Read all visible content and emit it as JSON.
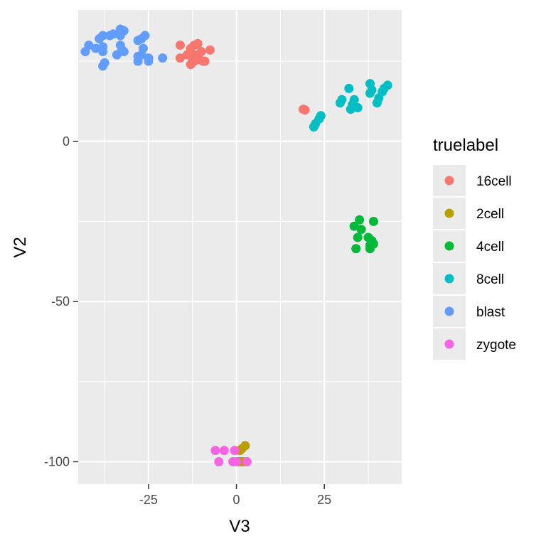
{
  "chart_data": {
    "type": "scatter",
    "xlabel": "V3",
    "ylabel": "V2",
    "xlim": [
      -45,
      47
    ],
    "ylim": [
      -107,
      41
    ],
    "x_ticks": [
      -25,
      0,
      25
    ],
    "x_tick_labels": [
      "-25",
      "0",
      "25"
    ],
    "y_ticks": [
      -100,
      -50,
      0
    ],
    "y_tick_labels": [
      "-100",
      "-50",
      "0"
    ],
    "grid": true,
    "legend": {
      "title": "truelabel",
      "placement": "right"
    },
    "series": [
      {
        "name": "16cell",
        "color": "#F8766D",
        "points": [
          [
            -16,
            30
          ],
          [
            -16,
            26
          ],
          [
            -13,
            29
          ],
          [
            -12,
            30
          ],
          [
            -11,
            30.5
          ],
          [
            -13,
            28
          ],
          [
            -10,
            28
          ],
          [
            -14,
            27
          ],
          [
            -11,
            27
          ],
          [
            -12.5,
            26
          ],
          [
            -10.5,
            25.5
          ],
          [
            -9.5,
            25
          ],
          [
            -9,
            25
          ],
          [
            -13,
            24
          ],
          [
            -12,
            25
          ],
          [
            -7.5,
            28.5
          ],
          [
            19,
            10
          ],
          [
            19.5,
            9.8
          ]
        ]
      },
      {
        "name": "2cell",
        "color": "#B79F00",
        "points": [
          [
            2.5,
            -95
          ],
          [
            1.5,
            -96
          ],
          [
            1,
            -96.5
          ],
          [
            0.5,
            -100
          ],
          [
            1,
            -100
          ],
          [
            1.5,
            -100
          ],
          [
            2,
            -100
          ]
        ]
      },
      {
        "name": "4cell",
        "color": "#00BA38",
        "points": [
          [
            35,
            -24.5
          ],
          [
            39,
            -25
          ],
          [
            33.5,
            -26.5
          ],
          [
            35.5,
            -27.5
          ],
          [
            34.5,
            -30
          ],
          [
            37.5,
            -30
          ],
          [
            38.5,
            -31
          ],
          [
            39,
            -32
          ],
          [
            38,
            -32.5
          ],
          [
            34,
            -33.5
          ],
          [
            38,
            -33.5
          ]
        ]
      },
      {
        "name": "8cell",
        "color": "#00BFC4",
        "points": [
          [
            38,
            18
          ],
          [
            43,
            17.5
          ],
          [
            42,
            16.5
          ],
          [
            38.5,
            16
          ],
          [
            41.5,
            15.5
          ],
          [
            38,
            15
          ],
          [
            32,
            16.5
          ],
          [
            40.5,
            13.5
          ],
          [
            40,
            12
          ],
          [
            30,
            13
          ],
          [
            29.5,
            12
          ],
          [
            33.5,
            13
          ],
          [
            33,
            11.5
          ],
          [
            34.5,
            10.5
          ],
          [
            32.5,
            10
          ],
          [
            24,
            8
          ],
          [
            23.5,
            7
          ],
          [
            22.5,
            5.5
          ],
          [
            22,
            4.5
          ]
        ]
      },
      {
        "name": "blast",
        "color": "#619CFF",
        "points": [
          [
            -33,
            35
          ],
          [
            -32,
            34.5
          ],
          [
            -35,
            33.5
          ],
          [
            -38,
            33
          ],
          [
            -36,
            33
          ],
          [
            -33,
            33
          ],
          [
            -26,
            33
          ],
          [
            -27,
            32
          ],
          [
            -39,
            32
          ],
          [
            -28,
            31.5
          ],
          [
            -42,
            30
          ],
          [
            -38,
            29.5
          ],
          [
            -40,
            29
          ],
          [
            -33,
            30
          ],
          [
            -26.5,
            29
          ],
          [
            -32.5,
            28.5
          ],
          [
            -32,
            28
          ],
          [
            -38,
            28
          ],
          [
            -43,
            28
          ],
          [
            -27,
            27
          ],
          [
            -34,
            27
          ],
          [
            -28,
            26.5
          ],
          [
            -25,
            26
          ],
          [
            -21,
            26
          ],
          [
            -28,
            25
          ],
          [
            -25,
            25
          ],
          [
            -37.5,
            24.5
          ],
          [
            -38,
            23.5
          ]
        ]
      },
      {
        "name": "zygote",
        "color": "#F564E3",
        "points": [
          [
            -6,
            -96.5
          ],
          [
            -3.5,
            -96.5
          ],
          [
            -0.5,
            -96.5
          ],
          [
            -5,
            -100
          ],
          [
            -1,
            -100
          ],
          [
            0,
            -100
          ],
          [
            3,
            -100
          ]
        ]
      }
    ]
  }
}
